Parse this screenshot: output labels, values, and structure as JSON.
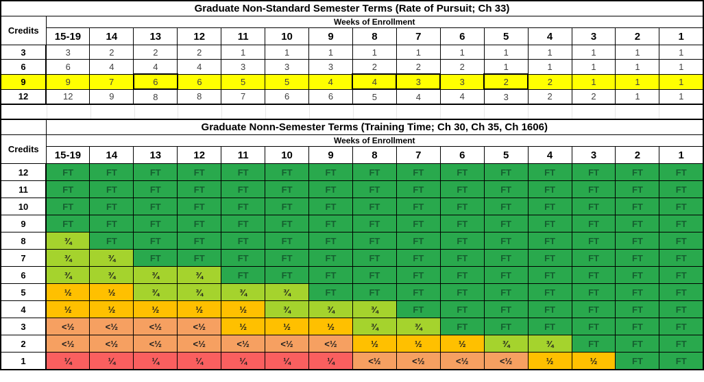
{
  "colors": {
    "highlight_yellow": "#FFFF00",
    "grid_line": "#000000",
    "table1_value_text": "#404040",
    "faint_gridline": "#E6E6E6"
  },
  "table1": {
    "title": "Graduate Non-Standard Semester Terms (Rate of Pursuit; Ch 33)",
    "credits_label": "Credits",
    "weeks_label": "Weeks of Enrollment",
    "week_columns": [
      "15-19",
      "14",
      "13",
      "12",
      "11",
      "10",
      "9",
      "8",
      "7",
      "6",
      "5",
      "4",
      "3",
      "2",
      "1"
    ],
    "rows": [
      {
        "credits": "3",
        "highlighted": false,
        "boxed_cols": [],
        "values": [
          "3",
          "2",
          "2",
          "2",
          "1",
          "1",
          "1",
          "1",
          "1",
          "1",
          "1",
          "1",
          "1",
          "1",
          "1"
        ]
      },
      {
        "credits": "6",
        "highlighted": false,
        "boxed_cols": [],
        "values": [
          "6",
          "4",
          "4",
          "4",
          "3",
          "3",
          "3",
          "2",
          "2",
          "2",
          "1",
          "1",
          "1",
          "1",
          "1"
        ]
      },
      {
        "credits": "9",
        "highlighted": true,
        "boxed_cols": [
          "13",
          "8",
          "7",
          "5"
        ],
        "values": [
          "9",
          "7",
          "6",
          "6",
          "5",
          "5",
          "4",
          "4",
          "3",
          "3",
          "2",
          "2",
          "1",
          "1",
          "1"
        ]
      },
      {
        "credits": "12",
        "highlighted": false,
        "boxed_cols": [],
        "values": [
          "12",
          "9",
          "8",
          "8",
          "7",
          "6",
          "6",
          "5",
          "4",
          "4",
          "3",
          "2",
          "2",
          "1",
          "1"
        ]
      }
    ]
  },
  "table2": {
    "title": "Graduate Nonn-Semester Terms (Training Time; Ch 30, Ch 35, Ch 1606)",
    "credits_label": "Credits",
    "weeks_label": "Weeks of Enrollment",
    "week_columns": [
      "15-19",
      "14",
      "13",
      "12",
      "11",
      "10",
      "9",
      "8",
      "7",
      "6",
      "5",
      "4",
      "3",
      "2",
      "1"
    ],
    "cell_types": {
      "FT": {
        "label": "FT",
        "bg": "#29A94D",
        "text": "#156030"
      },
      "3/4": {
        "label": "¾",
        "bg": "#A5D32D",
        "text": "#1E1E1E"
      },
      "1/2": {
        "label": "½",
        "bg": "#FFC000",
        "text": "#1E1E1E"
      },
      "<1/2": {
        "label": "<½",
        "bg": "#F6A061",
        "text": "#1E1E1E"
      },
      "1/4": {
        "label": "¼",
        "bg": "#FA5F5F",
        "text": "#1E1E1E"
      }
    },
    "rows": [
      {
        "credits": "12",
        "values": [
          "FT",
          "FT",
          "FT",
          "FT",
          "FT",
          "FT",
          "FT",
          "FT",
          "FT",
          "FT",
          "FT",
          "FT",
          "FT",
          "FT",
          "FT"
        ]
      },
      {
        "credits": "11",
        "values": [
          "FT",
          "FT",
          "FT",
          "FT",
          "FT",
          "FT",
          "FT",
          "FT",
          "FT",
          "FT",
          "FT",
          "FT",
          "FT",
          "FT",
          "FT"
        ]
      },
      {
        "credits": "10",
        "values": [
          "FT",
          "FT",
          "FT",
          "FT",
          "FT",
          "FT",
          "FT",
          "FT",
          "FT",
          "FT",
          "FT",
          "FT",
          "FT",
          "FT",
          "FT"
        ]
      },
      {
        "credits": "9",
        "values": [
          "FT",
          "FT",
          "FT",
          "FT",
          "FT",
          "FT",
          "FT",
          "FT",
          "FT",
          "FT",
          "FT",
          "FT",
          "FT",
          "FT",
          "FT"
        ]
      },
      {
        "credits": "8",
        "values": [
          "3/4",
          "FT",
          "FT",
          "FT",
          "FT",
          "FT",
          "FT",
          "FT",
          "FT",
          "FT",
          "FT",
          "FT",
          "FT",
          "FT",
          "FT"
        ]
      },
      {
        "credits": "7",
        "values": [
          "3/4",
          "3/4",
          "FT",
          "FT",
          "FT",
          "FT",
          "FT",
          "FT",
          "FT",
          "FT",
          "FT",
          "FT",
          "FT",
          "FT",
          "FT"
        ]
      },
      {
        "credits": "6",
        "values": [
          "3/4",
          "3/4",
          "3/4",
          "3/4",
          "FT",
          "FT",
          "FT",
          "FT",
          "FT",
          "FT",
          "FT",
          "FT",
          "FT",
          "FT",
          "FT"
        ]
      },
      {
        "credits": "5",
        "values": [
          "1/2",
          "1/2",
          "3/4",
          "3/4",
          "3/4",
          "3/4",
          "FT",
          "FT",
          "FT",
          "FT",
          "FT",
          "FT",
          "FT",
          "FT",
          "FT"
        ]
      },
      {
        "credits": "4",
        "values": [
          "1/2",
          "1/2",
          "1/2",
          "1/2",
          "1/2",
          "3/4",
          "3/4",
          "3/4",
          "FT",
          "FT",
          "FT",
          "FT",
          "FT",
          "FT",
          "FT"
        ]
      },
      {
        "credits": "3",
        "values": [
          "<1/2",
          "<1/2",
          "<1/2",
          "<1/2",
          "1/2",
          "1/2",
          "1/2",
          "3/4",
          "3/4",
          "FT",
          "FT",
          "FT",
          "FT",
          "FT",
          "FT"
        ]
      },
      {
        "credits": "2",
        "values": [
          "<1/2",
          "<1/2",
          "<1/2",
          "<1/2",
          "<1/2",
          "<1/2",
          "<1/2",
          "1/2",
          "1/2",
          "1/2",
          "3/4",
          "3/4",
          "FT",
          "FT",
          "FT"
        ]
      },
      {
        "credits": "1",
        "values": [
          "1/4",
          "1/4",
          "1/4",
          "1/4",
          "1/4",
          "1/4",
          "1/4",
          "<1/2",
          "<1/2",
          "<1/2",
          "<1/2",
          "1/2",
          "1/2",
          "FT",
          "FT"
        ]
      }
    ]
  }
}
